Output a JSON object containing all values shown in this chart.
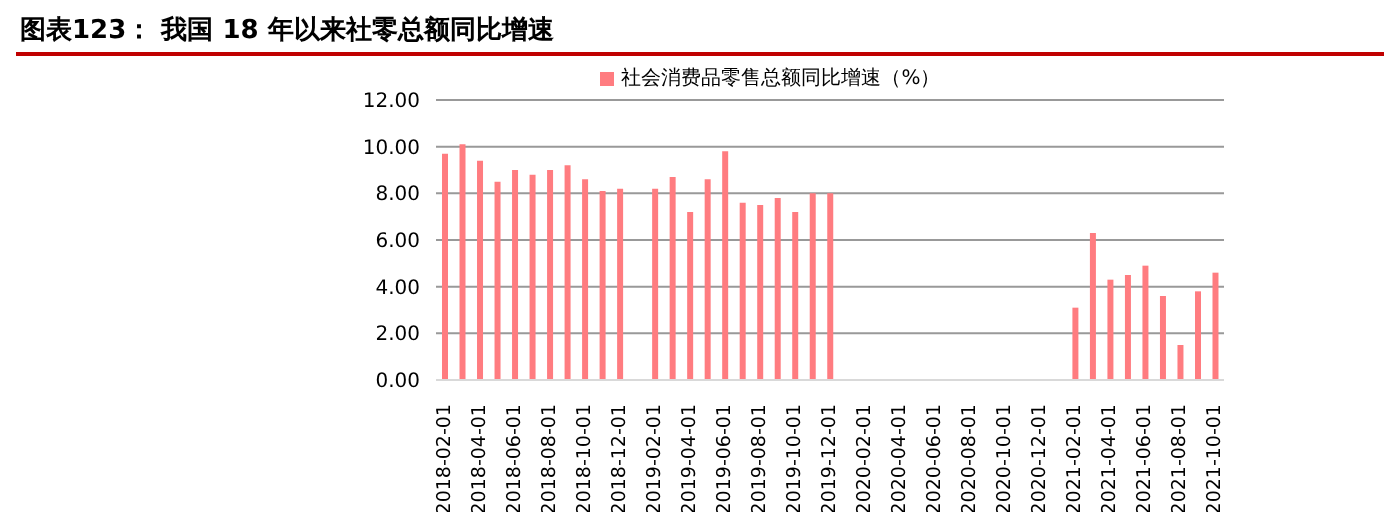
{
  "chart_data": {
    "type": "bar",
    "title": "图表123：  我国 18 年以来社零总额同比增速",
    "categories": [
      "2018-02-01",
      null,
      "2018-04-01",
      null,
      "2018-06-01",
      null,
      "2018-08-01",
      null,
      "2018-10-01",
      null,
      "2018-12-01",
      null,
      "2019-02-01",
      null,
      "2019-04-01",
      null,
      "2019-06-01",
      null,
      "2019-08-01",
      null,
      "2019-10-01",
      null,
      "2019-12-01",
      null,
      "2020-02-01",
      null,
      "2020-04-01",
      null,
      "2020-06-01",
      null,
      "2020-08-01",
      null,
      "2020-10-01",
      null,
      "2020-12-01",
      null,
      "2021-02-01",
      null,
      "2021-04-01",
      null,
      "2021-06-01",
      null,
      "2021-08-01",
      null,
      "2021-10-01"
    ],
    "series": [
      {
        "name": "社会消费品零售总额同比增速（%）",
        "color": "#ff7c80",
        "values": [
          9.7,
          10.1,
          9.4,
          8.5,
          9.0,
          8.8,
          9.0,
          9.2,
          8.6,
          8.1,
          8.2,
          null,
          8.2,
          8.7,
          7.2,
          8.6,
          9.8,
          7.6,
          7.5,
          7.8,
          7.2,
          8.0,
          8.0,
          null,
          null,
          null,
          null,
          null,
          null,
          null,
          null,
          null,
          null,
          null,
          null,
          null,
          3.1,
          6.3,
          4.3,
          4.5,
          4.9,
          3.6,
          1.5,
          3.8,
          4.6
        ]
      }
    ],
    "ylim": [
      0,
      12
    ],
    "yticks": [
      {
        "value": 0,
        "label": "0.00"
      },
      {
        "value": 2,
        "label": "2.00"
      },
      {
        "value": 4,
        "label": "4.00"
      },
      {
        "value": 6,
        "label": "6.00"
      },
      {
        "value": 8,
        "label": "8.00"
      },
      {
        "value": 10,
        "label": "10.00"
      },
      {
        "value": 12,
        "label": "12.00"
      }
    ],
    "grid": "y",
    "legend": "top"
  }
}
